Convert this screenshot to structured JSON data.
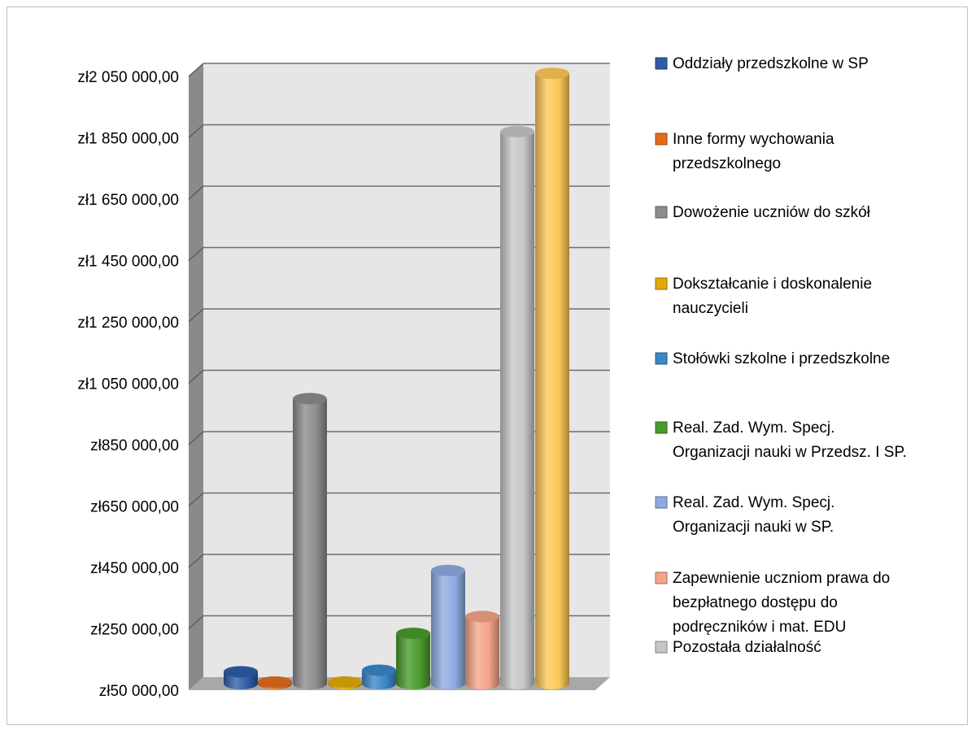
{
  "chart_data": {
    "type": "bar",
    "style": "3d-cylinder",
    "ylim": [
      50000,
      2050000
    ],
    "ytick_values": [
      50000,
      250000,
      450000,
      650000,
      850000,
      1050000,
      1250000,
      1450000,
      1650000,
      1850000,
      2050000
    ],
    "ytick_labels": [
      "zł50 000,00",
      "zł250 000,00",
      "zł450 000,00",
      "zł650 000,00",
      "zł850 000,00",
      "zł1 050 000,00",
      "zł1 250 000,00",
      "zł1 450 000,00",
      "zł1 650 000,00",
      "zł1 850 000,00",
      "zł2 050 000,00"
    ],
    "grid": true,
    "legend_position": "right",
    "series": [
      {
        "name": "Oddziały przedszkolne w SP",
        "value": 110000,
        "color": "#2e5da8",
        "legend_lines": [
          "Oddziały przedszkolne w SP"
        ]
      },
      {
        "name": "Inne formy wychowania przedszkolnego",
        "value": 72000,
        "color": "#e36c1d",
        "legend_lines": [
          "Inne formy wychowania",
          "przedszkolnego"
        ]
      },
      {
        "name": "Dowożenie uczniów do szkół",
        "value": 1000000,
        "color": "#8c8c8c",
        "legend_lines": [
          "Dowożenie uczniów do szkół"
        ]
      },
      {
        "name": "Dokształcanie i doskonalenie nauczycieli",
        "value": 52000,
        "color": "#e2aa07",
        "legend_lines": [
          "Dokształcanie i doskonalenie",
          "nauczycieli"
        ]
      },
      {
        "name": "Stołówki szkolne i przedszkolne",
        "value": 115000,
        "color": "#3a86c8",
        "legend_lines": [
          "Stołówki szkolne i przedszkolne"
        ]
      },
      {
        "name": "Real. Zad. Wym. Specj. Organizacji nauki w Przedsz. I SP.",
        "value": 235000,
        "color": "#4a9a2d",
        "legend_lines": [
          "Real. Zad.  Wym. Specj.",
          "Organizacji nauki w Przedsz. I  SP."
        ]
      },
      {
        "name": "Real. Zad. Wym. Specj. Organizacji nauki w SP.",
        "value": 440000,
        "color": "#8eaae0",
        "legend_lines": [
          "Real. Zad.  Wym. Specj.",
          "Organizacji nauki w SP."
        ]
      },
      {
        "name": "Zapewnienie uczniom prawa do bezpłatnego dostępu do podręczników i mat. EDU",
        "value": 290000,
        "color": "#f4a488",
        "legend_lines": [
          "Zapewnienie uczniom prawa do",
          "bezpłatnego dostępu do",
          "podręczników i mat. EDU"
        ]
      },
      {
        "name": "Pozostała działalność",
        "value": 1870000,
        "color": "#c6c6c6",
        "legend_lines": [
          "Pozostała działalność"
        ]
      },
      {
        "name": "",
        "value": 2060000,
        "color": "#fdc856",
        "legend_lines": []
      }
    ]
  }
}
